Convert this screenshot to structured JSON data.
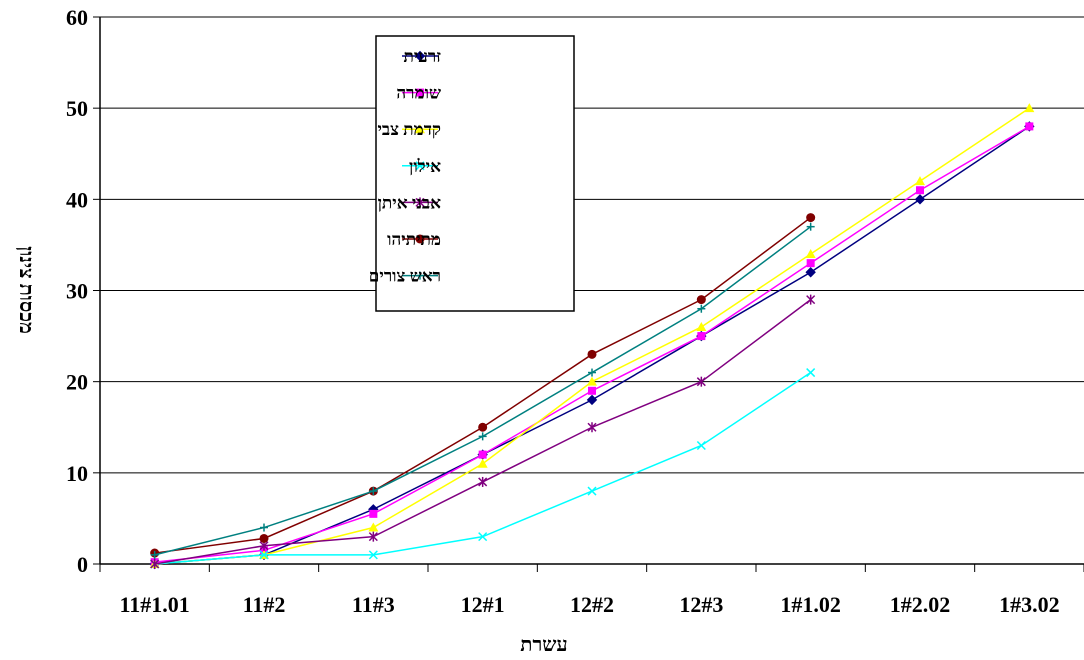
{
  "chart_data": {
    "type": "line",
    "title": "",
    "xlabel": "עשרת",
    "ylabel": "מכסות צינון",
    "ylim": [
      0,
      60
    ],
    "yticks": [
      0,
      10,
      20,
      30,
      40,
      50,
      60
    ],
    "grid": true,
    "legend_position": "top-center",
    "categories": [
      "11#1.01",
      "11#2",
      "11#3",
      "12#1",
      "12#2",
      "12#3",
      "1#1.02",
      "1#2.02",
      "1#3.02"
    ],
    "series": [
      {
        "name": "זרעית",
        "color": "#000080",
        "marker": "diamond",
        "values": [
          0,
          1,
          6,
          12,
          18,
          25,
          32,
          40,
          48
        ]
      },
      {
        "name": "שומרה",
        "color": "#ff00ff",
        "marker": "square",
        "values": [
          0.2,
          1.5,
          5.5,
          12,
          19,
          25,
          33,
          41,
          48
        ]
      },
      {
        "name": "קדמת צבי",
        "color": "#ffff00",
        "marker": "triangle",
        "values": [
          0,
          1,
          4,
          11,
          20,
          26,
          34,
          42,
          50
        ]
      },
      {
        "name": "אילון",
        "color": "#00ffff",
        "marker": "x",
        "values": [
          0,
          1,
          1,
          3,
          8,
          13,
          21,
          null,
          null
        ]
      },
      {
        "name": "אבני איתן",
        "color": "#800080",
        "marker": "star",
        "values": [
          0,
          2,
          3,
          9,
          15,
          20,
          29,
          null,
          null
        ]
      },
      {
        "name": "מתיתיהו",
        "color": "#800000",
        "marker": "circle",
        "values": [
          1.2,
          2.8,
          8,
          15,
          23,
          29,
          38,
          null,
          null
        ]
      },
      {
        "name": "ראש צורים",
        "color": "#008080",
        "marker": "plus",
        "values": [
          1,
          4,
          8,
          14,
          21,
          28,
          37,
          null,
          null
        ]
      }
    ]
  }
}
